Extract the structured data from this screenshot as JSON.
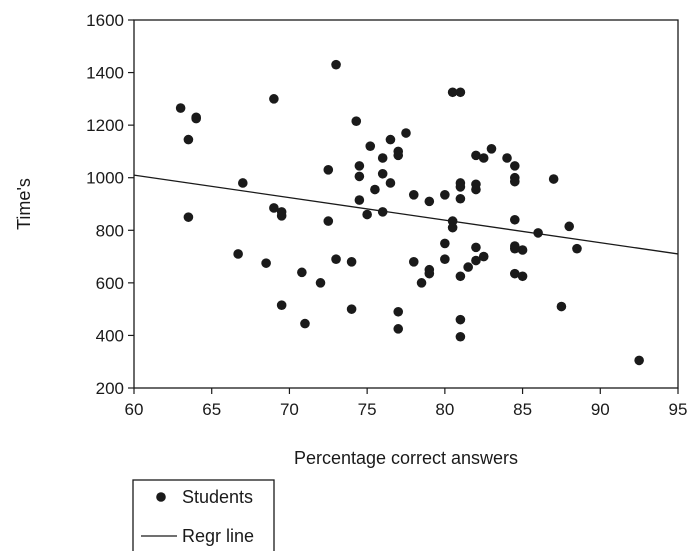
{
  "chart_data": {
    "type": "scatter",
    "xlabel": "Percentage correct answers",
    "ylabel": "Time's",
    "xlim": [
      60,
      95
    ],
    "ylim": [
      200,
      1600
    ],
    "xticks": [
      60,
      65,
      70,
      75,
      80,
      85,
      90,
      95
    ],
    "yticks": [
      200,
      400,
      600,
      800,
      1000,
      1200,
      1400,
      1600
    ],
    "grid": false,
    "legend_placement": "bottom-left, outside plot",
    "colors": {
      "points": "#1a1a1a",
      "line": "#1a1a1a",
      "axes": "#1a1a1a"
    },
    "series": [
      {
        "name": "Students",
        "marker": "filled-circle",
        "points": [
          [
            63,
            1265
          ],
          [
            64,
            1230
          ],
          [
            64,
            1225
          ],
          [
            63.5,
            1145
          ],
          [
            63.5,
            850
          ],
          [
            66.7,
            710
          ],
          [
            67,
            980
          ],
          [
            68.5,
            675
          ],
          [
            69,
            1300
          ],
          [
            69,
            885
          ],
          [
            69.5,
            870
          ],
          [
            69.5,
            855
          ],
          [
            69.5,
            515
          ],
          [
            70.8,
            640
          ],
          [
            71,
            445
          ],
          [
            72,
            600
          ],
          [
            72.5,
            1030
          ],
          [
            72.5,
            835
          ],
          [
            73,
            1430
          ],
          [
            73,
            690
          ],
          [
            74,
            680
          ],
          [
            74,
            500
          ],
          [
            74.3,
            1215
          ],
          [
            74.5,
            1045
          ],
          [
            74.5,
            1005
          ],
          [
            74.5,
            915
          ],
          [
            75,
            860
          ],
          [
            75.2,
            1120
          ],
          [
            75.5,
            955
          ],
          [
            76,
            1075
          ],
          [
            76,
            1015
          ],
          [
            76,
            870
          ],
          [
            76.5,
            1145
          ],
          [
            76.5,
            980
          ],
          [
            77,
            1100
          ],
          [
            77,
            1085
          ],
          [
            77,
            490
          ],
          [
            77,
            425
          ],
          [
            77.5,
            1170
          ],
          [
            78,
            935
          ],
          [
            78,
            680
          ],
          [
            78.5,
            600
          ],
          [
            79,
            910
          ],
          [
            79,
            650
          ],
          [
            79,
            635
          ],
          [
            80,
            935
          ],
          [
            80,
            750
          ],
          [
            80,
            690
          ],
          [
            80.5,
            1325
          ],
          [
            80.5,
            835
          ],
          [
            80.5,
            810
          ],
          [
            81,
            1325
          ],
          [
            81,
            980
          ],
          [
            81,
            965
          ],
          [
            81,
            920
          ],
          [
            81,
            625
          ],
          [
            81,
            460
          ],
          [
            81,
            395
          ],
          [
            81.5,
            660
          ],
          [
            82,
            1085
          ],
          [
            82,
            975
          ],
          [
            82,
            955
          ],
          [
            82,
            735
          ],
          [
            82,
            685
          ],
          [
            82.5,
            1075
          ],
          [
            82.5,
            700
          ],
          [
            83,
            1110
          ],
          [
            84,
            1075
          ],
          [
            84.5,
            1045
          ],
          [
            84.5,
            1000
          ],
          [
            84.5,
            985
          ],
          [
            84.5,
            840
          ],
          [
            84.5,
            740
          ],
          [
            84.5,
            730
          ],
          [
            84.5,
            635
          ],
          [
            85,
            725
          ],
          [
            85,
            625
          ],
          [
            86,
            790
          ],
          [
            87,
            995
          ],
          [
            87.5,
            510
          ],
          [
            88,
            815
          ],
          [
            88.5,
            730
          ],
          [
            92.5,
            305
          ]
        ]
      },
      {
        "name": "Regr line",
        "type": "line",
        "x": [
          60,
          95
        ],
        "y": [
          1010,
          710
        ]
      }
    ]
  }
}
